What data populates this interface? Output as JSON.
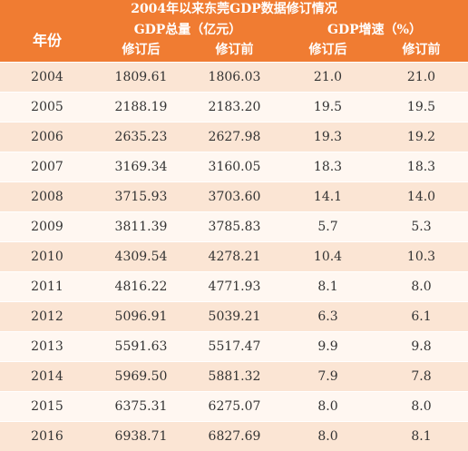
{
  "title": "2004年以来东莞GDP数据修订情况",
  "header": {
    "year": "年份",
    "gdp_total": "GDP总量（亿元）",
    "gdp_growth": "GDP增速（%）",
    "revised": "修订后",
    "original": "修订前"
  },
  "rows": [
    {
      "year": "2004",
      "gdp_revised": "1809.61",
      "gdp_original": "1806.03",
      "growth_revised": "21.0",
      "growth_original": "21.0"
    },
    {
      "year": "2005",
      "gdp_revised": "2188.19",
      "gdp_original": "2183.20",
      "growth_revised": "19.5",
      "growth_original": "19.5"
    },
    {
      "year": "2006",
      "gdp_revised": "2635.23",
      "gdp_original": "2627.98",
      "growth_revised": "19.3",
      "growth_original": "19.2"
    },
    {
      "year": "2007",
      "gdp_revised": "3169.34",
      "gdp_original": "3160.05",
      "growth_revised": "18.3",
      "growth_original": "18.3"
    },
    {
      "year": "2008",
      "gdp_revised": "3715.93",
      "gdp_original": "3703.60",
      "growth_revised": "14.1",
      "growth_original": "14.0"
    },
    {
      "year": "2009",
      "gdp_revised": "3811.39",
      "gdp_original": "3785.83",
      "growth_revised": "5.7",
      "growth_original": "5.3"
    },
    {
      "year": "2010",
      "gdp_revised": "4309.54",
      "gdp_original": "4278.21",
      "growth_revised": "10.4",
      "growth_original": "10.3"
    },
    {
      "year": "2011",
      "gdp_revised": "4816.22",
      "gdp_original": "4771.93",
      "growth_revised": "8.1",
      "growth_original": "8.0"
    },
    {
      "year": "2012",
      "gdp_revised": "5096.91",
      "gdp_original": "5039.21",
      "growth_revised": "6.3",
      "growth_original": "6.1"
    },
    {
      "year": "2013",
      "gdp_revised": "5591.63",
      "gdp_original": "5517.47",
      "growth_revised": "9.9",
      "growth_original": "9.8"
    },
    {
      "year": "2014",
      "gdp_revised": "5969.50",
      "gdp_original": "5881.32",
      "growth_revised": "7.9",
      "growth_original": "7.8"
    },
    {
      "year": "2015",
      "gdp_revised": "6375.31",
      "gdp_original": "6275.07",
      "growth_revised": "8.0",
      "growth_original": "8.0"
    },
    {
      "year": "2016",
      "gdp_revised": "6938.71",
      "gdp_original": "6827.69",
      "growth_revised": "8.0",
      "growth_original": "8.1"
    }
  ],
  "colors": {
    "header_bg": "#f07c32",
    "row_odd": "#fbe5d4",
    "row_even": "#fff7f1"
  }
}
